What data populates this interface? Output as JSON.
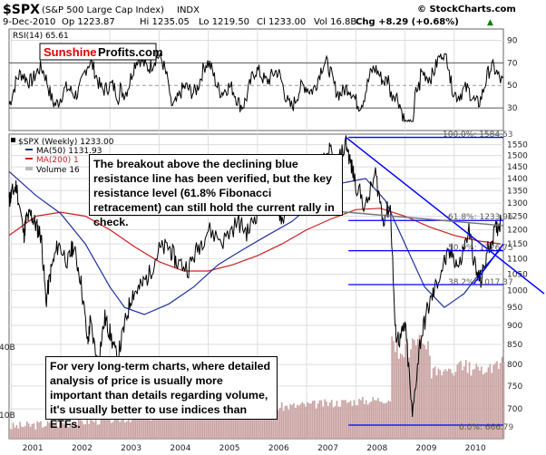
{
  "header": {
    "symbol": "$SPX",
    "name": "(S&P 500 Large Cap Index)",
    "exchange": "INDX",
    "date": "9-Dec-2010",
    "op": "Op 1223.87",
    "hi": "Hi 1235.05",
    "lo": "Lo 1219.50",
    "cl": "Cl 1233.00",
    "vol": "Vol 16.8B",
    "chg": "Chg +8.29 (+0.68%)",
    "arrow": "▲",
    "source": "© StockCharts.com"
  },
  "logo": {
    "part1": "Sunshine",
    "part2": "Profits.com"
  },
  "rsi_panel": {
    "label": "RSI(14) 65.61",
    "levels": [
      70,
      50,
      30
    ]
  },
  "price_panel": {
    "legend": [
      {
        "text": "$SPX (Weekly) 1233.00",
        "color": "#000000"
      },
      {
        "text": "MA(50) 1131.93",
        "color": "#1f2fa0"
      },
      {
        "text": "MA(200) 1",
        "color": "#cc2020"
      },
      {
        "text": "Volume 16",
        "color": "#888888"
      }
    ]
  },
  "fib_labels": [
    {
      "text": "100.0%: 1584.53",
      "value": 1584.53
    },
    {
      "text": "61.8%: 1233.96",
      "value": 1233.96
    },
    {
      "text": "50.0%: 1126.75",
      "value": 1126.75
    },
    {
      "text": "38.2%: 1017.37",
      "value": 1017.37
    },
    {
      "text": "0.0%: 666.79",
      "value": 666.79
    }
  ],
  "annotations": {
    "top": "The breakout above the declining blue resistance line has been verified, but the key resistance level (61.8% Fibonacci retracement) can still hold the current rally in check.",
    "bottom": "For very long-term charts, where detailed analysis of price is usually more important than details regarding volume, it's usually better to use indices than ETFs."
  },
  "volume_labels": [
    {
      "text": "40B",
      "value": 40
    },
    {
      "text": "10B",
      "value": 10
    }
  ],
  "colors": {
    "price": "#000000",
    "down": "#cc0000",
    "ma50": "#1f2fa0",
    "ma200": "#cc2020",
    "resistance": "#0000ff",
    "volume": "#c8a0a0",
    "grid": "#dddddd"
  },
  "chart_data": {
    "type": "line",
    "title": "$SPX (S&P 500 Large Cap Index) INDX",
    "x_ticks": [
      "2001",
      "2002",
      "2003",
      "2004",
      "2005",
      "2006",
      "2007",
      "2008",
      "2009",
      "2010"
    ],
    "rsi_ylim": [
      10,
      100
    ],
    "rsi_ticks": [
      90,
      70,
      50,
      30
    ],
    "price_ylim": [
      640,
      1600
    ],
    "price_ticks": [
      1550,
      1500,
      1450,
      1400,
      1350,
      1300,
      1250,
      1200,
      1150,
      1100,
      1050,
      1000,
      950,
      900,
      850,
      800,
      750,
      700
    ],
    "price_scale": "log",
    "series": [
      {
        "name": "$SPX (Weekly)",
        "points": [
          [
            2000.95,
            1310
          ],
          [
            2001.0,
            1335
          ],
          [
            2001.1,
            1370
          ],
          [
            2001.25,
            1180
          ],
          [
            2001.3,
            1240
          ],
          [
            2001.4,
            1255
          ],
          [
            2001.5,
            1215
          ],
          [
            2001.6,
            1180
          ],
          [
            2001.7,
            965
          ],
          [
            2001.8,
            1060
          ],
          [
            2001.95,
            1150
          ],
          [
            2002.15,
            1090
          ],
          [
            2002.25,
            1145
          ],
          [
            2002.4,
            1040
          ],
          [
            2002.55,
            850
          ],
          [
            2002.6,
            910
          ],
          [
            2002.75,
            800
          ],
          [
            2002.9,
            920
          ],
          [
            2003.0,
            880
          ],
          [
            2003.15,
            810
          ],
          [
            2003.3,
            900
          ],
          [
            2003.45,
            990
          ],
          [
            2003.6,
            1005
          ],
          [
            2003.8,
            1050
          ],
          [
            2004.0,
            1130
          ],
          [
            2004.2,
            1140
          ],
          [
            2004.35,
            1090
          ],
          [
            2004.6,
            1070
          ],
          [
            2004.8,
            1140
          ],
          [
            2005.0,
            1200
          ],
          [
            2005.3,
            1160
          ],
          [
            2005.6,
            1230
          ],
          [
            2005.8,
            1190
          ],
          [
            2006.0,
            1270
          ],
          [
            2006.35,
            1320
          ],
          [
            2006.5,
            1240
          ],
          [
            2006.8,
            1380
          ],
          [
            2007.0,
            1430
          ],
          [
            2007.2,
            1390
          ],
          [
            2007.45,
            1530
          ],
          [
            2007.6,
            1440
          ],
          [
            2007.8,
            1560
          ],
          [
            2007.9,
            1460
          ],
          [
            2008.0,
            1380
          ],
          [
            2008.2,
            1280
          ],
          [
            2008.4,
            1420
          ],
          [
            2008.55,
            1240
          ],
          [
            2008.7,
            1290
          ],
          [
            2008.8,
            880
          ],
          [
            2008.9,
            860
          ],
          [
            2009.0,
            900
          ],
          [
            2009.15,
            680
          ],
          [
            2009.3,
            850
          ],
          [
            2009.45,
            940
          ],
          [
            2009.6,
            1000
          ],
          [
            2009.8,
            1090
          ],
          [
            2009.95,
            1120
          ],
          [
            2010.1,
            1070
          ],
          [
            2010.3,
            1200
          ],
          [
            2010.45,
            1050
          ],
          [
            2010.55,
            1030
          ],
          [
            2010.7,
            1140
          ],
          [
            2010.85,
            1200
          ],
          [
            2010.95,
            1233
          ]
        ]
      },
      {
        "name": "MA(50)",
        "points": [
          [
            2000.95,
            1430
          ],
          [
            2001.5,
            1330
          ],
          [
            2002.0,
            1260
          ],
          [
            2002.5,
            1150
          ],
          [
            2003.0,
            1010
          ],
          [
            2003.3,
            950
          ],
          [
            2003.7,
            930
          ],
          [
            2004.2,
            960
          ],
          [
            2004.7,
            1010
          ],
          [
            2005.2,
            1080
          ],
          [
            2005.7,
            1130
          ],
          [
            2006.2,
            1180
          ],
          [
            2006.7,
            1230
          ],
          [
            2007.2,
            1310
          ],
          [
            2007.7,
            1380
          ],
          [
            2008.2,
            1400
          ],
          [
            2008.6,
            1310
          ],
          [
            2009.0,
            1150
          ],
          [
            2009.4,
            1010
          ],
          [
            2009.8,
            950
          ],
          [
            2010.2,
            990
          ],
          [
            2010.6,
            1070
          ],
          [
            2010.95,
            1132
          ]
        ]
      },
      {
        "name": "MA(200)",
        "points": [
          [
            2000.95,
            1180
          ],
          [
            2001.5,
            1250
          ],
          [
            2002.0,
            1265
          ],
          [
            2002.5,
            1250
          ],
          [
            2003.0,
            1200
          ],
          [
            2003.5,
            1140
          ],
          [
            2004.0,
            1090
          ],
          [
            2004.5,
            1060
          ],
          [
            2005.0,
            1060
          ],
          [
            2005.5,
            1080
          ],
          [
            2006.0,
            1110
          ],
          [
            2006.5,
            1150
          ],
          [
            2007.0,
            1200
          ],
          [
            2007.5,
            1240
          ],
          [
            2008.0,
            1275
          ],
          [
            2008.5,
            1280
          ],
          [
            2009.0,
            1250
          ],
          [
            2009.5,
            1210
          ],
          [
            2010.0,
            1180
          ],
          [
            2010.5,
            1160
          ],
          [
            2010.95,
            1150
          ]
        ]
      }
    ]
  }
}
